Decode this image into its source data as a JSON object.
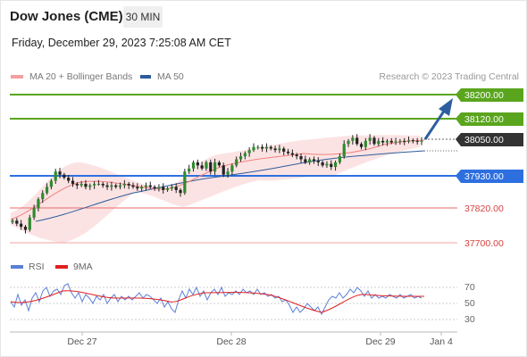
{
  "header": {
    "title": "Dow Jones (CME)",
    "timeframe": "30 MIN"
  },
  "datetime": "Friday, December 29, 2023 7:25:08 AM CET",
  "legend": {
    "ma20": {
      "label": "MA 20 + Bollinger Bands",
      "color": "#f08080"
    },
    "ma50": {
      "label": "MA 50",
      "color": "#2e5c9a"
    }
  },
  "credit": "Research © 2023 Trading Central",
  "levels": [
    {
      "label": "38200.00",
      "value": 38200,
      "style": "green-box"
    },
    {
      "label": "38120.00",
      "value": 38120,
      "style": "green-box"
    },
    {
      "label": "38050.00",
      "value": 38050,
      "style": "dark-box"
    },
    {
      "label": "37930.00",
      "value": 37930,
      "style": "blue-box"
    },
    {
      "label": "37820.00",
      "value": 37820,
      "style": "red-text"
    },
    {
      "label": "37700.00",
      "value": 37700,
      "style": "red-text"
    }
  ],
  "rsi_legend": {
    "rsi": "RSI",
    "ma": "9MA",
    "rsi_color": "#5b7fd6",
    "ma_color": "#e02020"
  },
  "rsi_axis": [
    "70",
    "50",
    "30"
  ],
  "x_axis": [
    "Dec 27",
    "Dec 28",
    "Dec 29",
    "Jan 4"
  ],
  "colors": {
    "green": "#5aa51e",
    "blue": "#2e6fe0",
    "red": "#e05555",
    "dark": "#333333",
    "arrow": "#2d5f9e"
  },
  "chart_data": {
    "type": "candlestick",
    "y_range": [
      37680,
      38230
    ],
    "close_series": [
      37790,
      37780,
      37770,
      37760,
      37800,
      37830,
      37860,
      37880,
      37900,
      37920,
      37950,
      37940,
      37930,
      37920,
      37910,
      37905,
      37910,
      37900,
      37905,
      37910,
      37910,
      37905,
      37900,
      37905,
      37900,
      37905,
      37910,
      37905,
      37900,
      37895,
      37900,
      37905,
      37900,
      37895,
      37900,
      37890,
      37895,
      37900,
      37890,
      37880,
      37950,
      37960,
      37980,
      37970,
      37960,
      37980,
      37950,
      37980,
      37970,
      37940,
      37950,
      37970,
      37990,
      38000,
      38010,
      38020,
      38030,
      38030,
      38025,
      38030,
      38025,
      38020,
      38025,
      38015,
      38010,
      38005,
      38000,
      37990,
      37980,
      37990,
      37985,
      37980,
      37970,
      37975,
      37965,
      37980,
      38000,
      38040,
      38050,
      38060,
      38040,
      38030,
      38050,
      38060,
      38040,
      38050,
      38045,
      38050,
      38045,
      38048,
      38050,
      38048,
      38052,
      38050,
      38048,
      38050
    ]
  }
}
